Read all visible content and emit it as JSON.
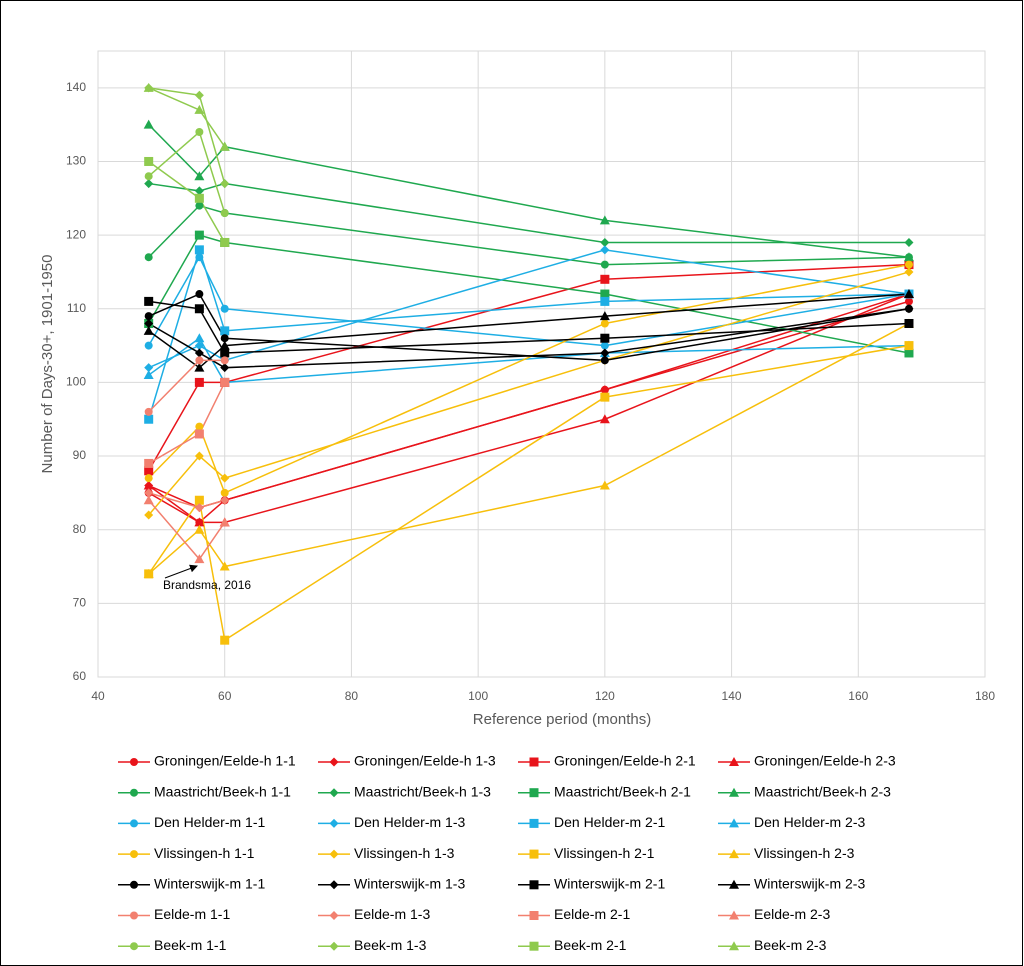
{
  "chart_data": {
    "type": "line",
    "xlabel": "Reference period (months)",
    "ylabel": "Number of Days-30+, 1901-1950",
    "annotation": "Brandsma, 2016",
    "x": [
      48,
      56,
      60,
      120,
      168
    ],
    "xlim": [
      40,
      180
    ],
    "xticks": [
      40,
      60,
      80,
      100,
      120,
      140,
      160,
      180
    ],
    "ylim": [
      60,
      145
    ],
    "yticks": [
      60,
      70,
      80,
      90,
      100,
      110,
      120,
      130,
      140
    ],
    "grid": true,
    "legend": "bottom",
    "series": [
      {
        "name": "Groningen/Eelde-h 1-1",
        "color": "#e8141b",
        "marker": "circle",
        "values": [
          85,
          81,
          84,
          99,
          111
        ]
      },
      {
        "name": "Groningen/Eelde-h 1-3",
        "color": "#e8141b",
        "marker": "diamond",
        "values": [
          86,
          83,
          84,
          99,
          112
        ]
      },
      {
        "name": "Groningen/Eelde-h 2-1",
        "color": "#e8141b",
        "marker": "square",
        "values": [
          88,
          100,
          100,
          114,
          116
        ]
      },
      {
        "name": "Groningen/Eelde-h 2-3",
        "color": "#e8141b",
        "marker": "triangle",
        "values": [
          86,
          81,
          81,
          95,
          112
        ]
      },
      {
        "name": "Maastricht/Beek-h 1-1",
        "color": "#1fa84f",
        "marker": "circle",
        "values": [
          117,
          124,
          123,
          116,
          117
        ]
      },
      {
        "name": "Maastricht/Beek-h 1-3",
        "color": "#1fa84f",
        "marker": "diamond",
        "values": [
          127,
          126,
          127,
          119,
          119
        ]
      },
      {
        "name": "Maastricht/Beek-h 2-1",
        "color": "#1fa84f",
        "marker": "square",
        "values": [
          108,
          120,
          119,
          112,
          104
        ]
      },
      {
        "name": "Maastricht/Beek-h 2-3",
        "color": "#1fa84f",
        "marker": "triangle",
        "values": [
          135,
          128,
          132,
          122,
          117
        ]
      },
      {
        "name": "Den Helder-m 1-1",
        "color": "#1eaee4",
        "marker": "circle",
        "values": [
          105,
          117,
          110,
          105,
          112
        ]
      },
      {
        "name": "Den Helder-m 1-3",
        "color": "#1eaee4",
        "marker": "diamond",
        "values": [
          102,
          105,
          103,
          118,
          112
        ]
      },
      {
        "name": "Den Helder-m 2-1",
        "color": "#1eaee4",
        "marker": "square",
        "values": [
          95,
          118,
          107,
          111,
          112
        ]
      },
      {
        "name": "Den Helder-m 2-3",
        "color": "#1eaee4",
        "marker": "triangle",
        "values": [
          101,
          106,
          100,
          104,
          105
        ]
      },
      {
        "name": "Vlissingen-h 1-1",
        "color": "#f7bf0b",
        "marker": "circle",
        "values": [
          87,
          94,
          85,
          108,
          116
        ]
      },
      {
        "name": "Vlissingen-h 1-3",
        "color": "#f7bf0b",
        "marker": "diamond",
        "values": [
          82,
          90,
          87,
          103,
          115
        ]
      },
      {
        "name": "Vlissingen-h 2-1",
        "color": "#f7bf0b",
        "marker": "square",
        "values": [
          74,
          84,
          65,
          98,
          105
        ]
      },
      {
        "name": "Vlissingen-h 2-3",
        "color": "#f7bf0b",
        "marker": "triangle",
        "values": [
          74,
          80,
          75,
          86,
          108
        ]
      },
      {
        "name": "Winterswijk-m 1-1",
        "color": "#000000",
        "marker": "circle",
        "values": [
          109,
          112,
          106,
          103,
          110
        ]
      },
      {
        "name": "Winterswijk-m 1-3",
        "color": "#000000",
        "marker": "diamond",
        "values": [
          108,
          104,
          102,
          104,
          110
        ]
      },
      {
        "name": "Winterswijk-m 2-1",
        "color": "#000000",
        "marker": "square",
        "values": [
          111,
          110,
          104,
          106,
          108
        ]
      },
      {
        "name": "Winterswijk-m 2-3",
        "color": "#000000",
        "marker": "triangle",
        "values": [
          107,
          102,
          105,
          109,
          112
        ]
      },
      {
        "name": "Eelde-m 1-1",
        "color": "#f2806f",
        "marker": "circle",
        "values": [
          96,
          103,
          103,
          null,
          null
        ]
      },
      {
        "name": "Eelde-m 1-3",
        "color": "#f2806f",
        "marker": "diamond",
        "values": [
          85,
          83,
          84,
          null,
          null
        ]
      },
      {
        "name": "Eelde-m 2-1",
        "color": "#f2806f",
        "marker": "square",
        "values": [
          89,
          93,
          100,
          null,
          null
        ]
      },
      {
        "name": "Eelde-m 2-3",
        "color": "#f2806f",
        "marker": "triangle",
        "values": [
          84,
          76,
          81,
          null,
          null
        ]
      },
      {
        "name": "Beek-m 1-1",
        "color": "#8fca4e",
        "marker": "circle",
        "values": [
          128,
          134,
          123,
          null,
          null
        ]
      },
      {
        "name": "Beek-m 1-3",
        "color": "#8fca4e",
        "marker": "diamond",
        "values": [
          140,
          139,
          127,
          null,
          null
        ]
      },
      {
        "name": "Beek-m 2-1",
        "color": "#8fca4e",
        "marker": "square",
        "values": [
          130,
          125,
          119,
          null,
          null
        ]
      },
      {
        "name": "Beek-m 2-3",
        "color": "#8fca4e",
        "marker": "triangle",
        "values": [
          140,
          137,
          132,
          null,
          null
        ]
      }
    ]
  }
}
